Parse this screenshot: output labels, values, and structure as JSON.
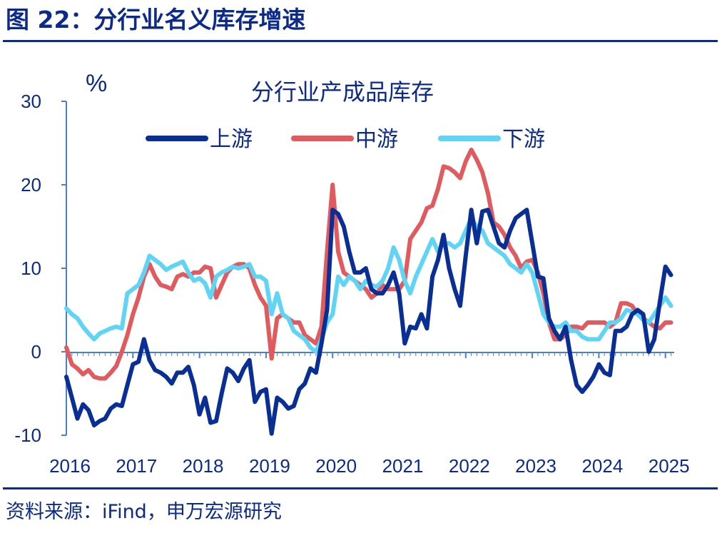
{
  "header": {
    "figure_title": "图 22：分行业名义库存增速"
  },
  "footer": {
    "source": "资料来源：iFind，申万宏源研究"
  },
  "colors": {
    "upstream": "#0a2f94",
    "midstream": "#e15a5e",
    "downstream": "#5fd4f5",
    "brand": "#0b2a8a"
  },
  "chart_data": {
    "type": "line",
    "title": "分行业产成品库存",
    "ylabel": "%",
    "xlabel": "",
    "ylim": [
      -10,
      30
    ],
    "yticks": [
      "-10",
      "0",
      "10",
      "20",
      "30"
    ],
    "x_start": 2016.0,
    "x_step": 0.0833,
    "xticks": [
      "2016",
      "2017",
      "2018",
      "2019",
      "2020",
      "2021",
      "2022",
      "2023",
      "2024",
      "2025"
    ],
    "legend_position": "top",
    "series": [
      {
        "name": "上游",
        "values": [
          -3.0,
          -5.5,
          -8.0,
          -6.3,
          -7.0,
          -8.8,
          -8.3,
          -8.0,
          -6.8,
          -6.3,
          -6.5,
          -4.0,
          -1.5,
          -1.2,
          1.5,
          -1.0,
          -2.2,
          -2.5,
          -3.0,
          -3.8,
          -2.5,
          -2.5,
          -1.8,
          -4.0,
          -7.5,
          -5.5,
          -8.5,
          -8.3,
          -5.0,
          -2.0,
          -2.5,
          -3.5,
          -2.0,
          -1.0,
          -6.0,
          -4.8,
          -4.5,
          -9.8,
          -5.5,
          -6.0,
          -6.8,
          -6.5,
          -4.5,
          -3.8,
          -2.0,
          -2.5,
          1.0,
          5.0,
          17.0,
          16.5,
          15.0,
          12.0,
          9.5,
          9.5,
          10.0,
          7.5,
          7.0,
          7.0,
          8.0,
          9.5,
          7.0,
          1.0,
          3.0,
          2.8,
          4.5,
          2.8,
          9.0,
          11.0,
          14.0,
          10.0,
          7.5,
          5.5,
          11.5,
          17.0,
          13.0,
          16.8,
          17.0,
          15.0,
          13.0,
          12.5,
          14.5,
          16.0,
          16.5,
          17.0,
          13.0,
          9.0,
          8.8,
          4.0,
          2.5,
          1.5,
          3.0,
          -1.0,
          -4.0,
          -4.8,
          -4.0,
          -3.0,
          -1.5,
          -2.5,
          -2.8,
          2.5,
          2.5,
          3.0,
          4.5,
          5.0,
          4.5,
          0.0,
          1.5,
          6.0,
          10.2,
          9.2
        ]
      },
      {
        "name": "中游",
        "values": [
          0.5,
          -1.5,
          -2.0,
          -2.7,
          -2.2,
          -3.0,
          -3.2,
          -3.2,
          -2.5,
          -1.7,
          0.0,
          2.0,
          4.5,
          6.5,
          9.0,
          10.5,
          9.0,
          8.0,
          7.8,
          7.5,
          9.0,
          9.3,
          9.0,
          9.5,
          9.5,
          10.2,
          10.0,
          6.5,
          8.0,
          9.5,
          10.2,
          10.5,
          10.5,
          10.0,
          8.0,
          6.5,
          5.5,
          -0.8,
          4.0,
          4.5,
          4.0,
          3.5,
          3.5,
          2.0,
          1.5,
          1.0,
          3.0,
          12.0,
          20.0,
          12.0,
          9.5,
          9.0,
          8.5,
          8.0,
          7.5,
          6.5,
          7.0,
          8.0,
          7.5,
          7.5,
          7.5,
          8.5,
          13.5,
          14.5,
          15.5,
          17.2,
          17.5,
          19.5,
          22.2,
          22.0,
          21.5,
          20.8,
          22.8,
          24.2,
          23.0,
          21.5,
          19.0,
          15.5,
          15.0,
          14.0,
          12.5,
          11.5,
          10.0,
          10.8,
          11.0,
          9.5,
          7.0,
          3.5,
          1.5,
          1.5,
          2.0,
          3.0,
          3.0,
          2.8,
          3.5,
          3.5,
          3.5,
          3.5,
          3.0,
          3.5,
          5.8,
          5.8,
          5.5,
          4.5,
          4.0,
          3.5,
          3.0,
          2.8,
          3.5,
          3.5
        ]
      },
      {
        "name": "下游",
        "values": [
          5.2,
          4.5,
          4.0,
          3.0,
          2.2,
          1.5,
          2.2,
          2.5,
          2.8,
          3.0,
          2.8,
          7.0,
          7.5,
          8.0,
          9.5,
          11.5,
          11.0,
          10.5,
          9.8,
          10.2,
          10.5,
          10.8,
          9.5,
          8.5,
          8.8,
          8.2,
          6.5,
          9.0,
          9.5,
          9.8,
          10.2,
          10.0,
          10.2,
          10.5,
          9.0,
          9.0,
          8.5,
          4.5,
          7.0,
          4.5,
          4.0,
          2.5,
          2.0,
          1.5,
          0.5,
          0.0,
          1.5,
          3.5,
          4.5,
          9.0,
          8.0,
          9.0,
          8.5,
          7.5,
          8.5,
          8.0,
          7.8,
          8.5,
          10.0,
          12.5,
          11.0,
          8.5,
          7.0,
          9.0,
          10.5,
          12.0,
          13.5,
          12.0,
          13.0,
          13.0,
          12.5,
          13.0,
          14.5,
          16.0,
          15.0,
          14.5,
          13.0,
          12.5,
          12.0,
          11.5,
          10.5,
          10.0,
          9.5,
          10.5,
          9.5,
          7.0,
          4.5,
          3.5,
          3.0,
          3.0,
          3.5,
          2.5,
          2.5,
          1.8,
          1.5,
          1.5,
          1.5,
          2.5,
          3.5,
          3.5,
          4.0,
          5.0,
          4.8,
          4.5,
          3.8,
          3.5,
          4.5,
          5.5,
          6.5,
          5.5
        ]
      }
    ]
  }
}
